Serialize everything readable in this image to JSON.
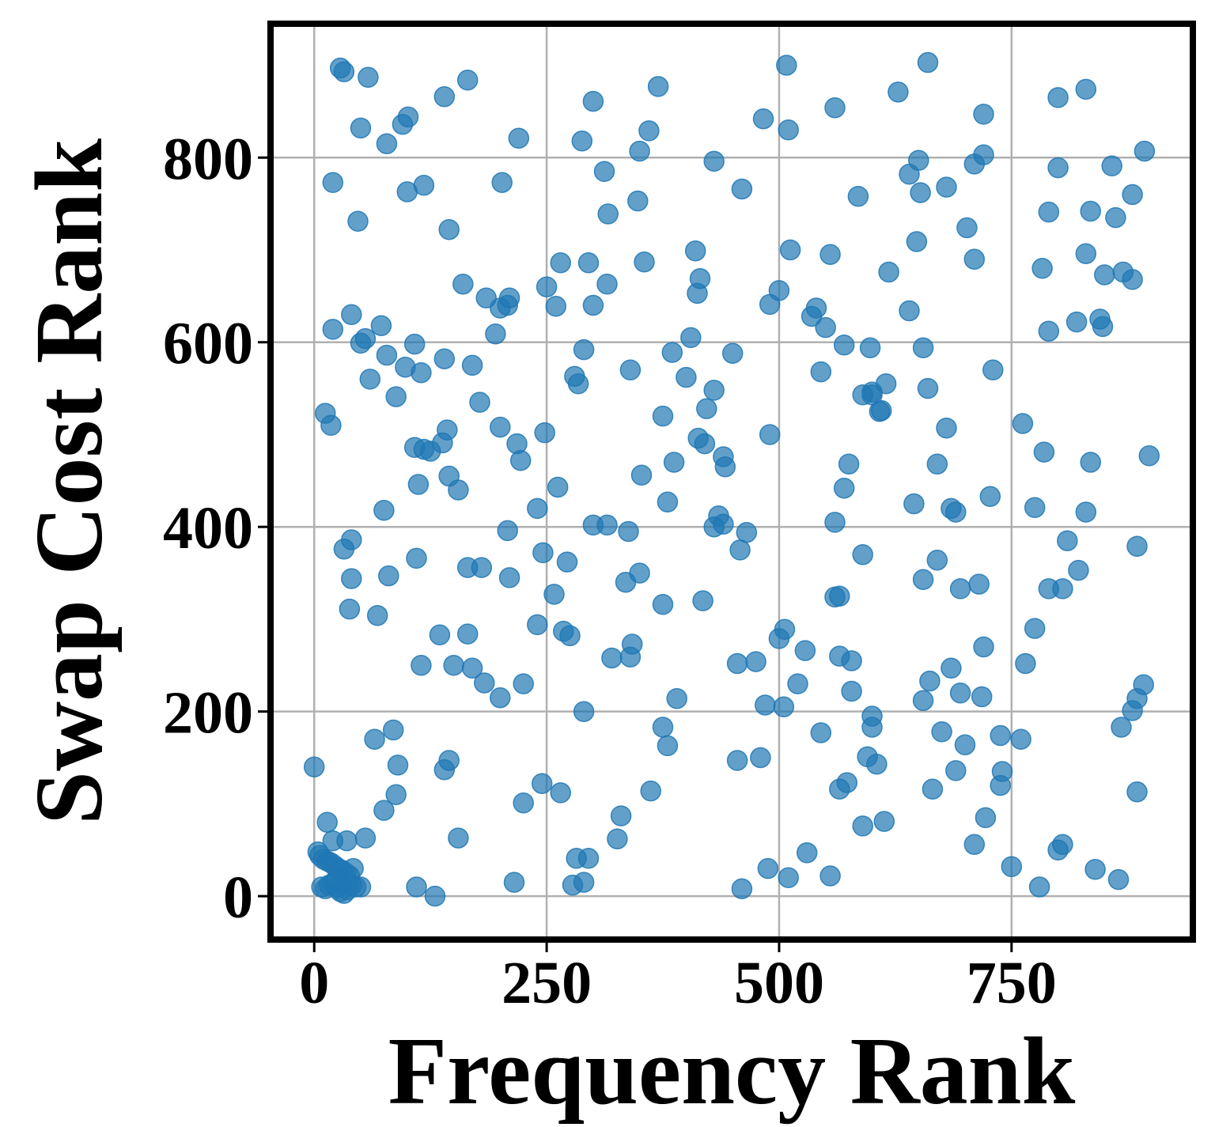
{
  "chart_data": {
    "type": "scatter",
    "xlabel": "Frequency Rank",
    "ylabel": "Swap Cost Rank",
    "xlim": [
      -47,
      945
    ],
    "ylim": [
      -47,
      945
    ],
    "xticks": [
      0,
      250,
      500,
      750
    ],
    "yticks": [
      0,
      200,
      400,
      600,
      800
    ],
    "xtick_labels": [
      "0",
      "250",
      "500",
      "750"
    ],
    "ytick_labels": [
      "0",
      "200",
      "400",
      "600",
      "800"
    ],
    "grid": true,
    "legend": "none",
    "point_color": "#1f77b4",
    "point_alpha": 0.7,
    "points": [
      [
        28,
        897
      ],
      [
        32,
        893
      ],
      [
        58,
        887
      ],
      [
        165,
        884
      ],
      [
        50,
        832
      ],
      [
        78,
        815
      ],
      [
        95,
        836
      ],
      [
        101,
        844
      ],
      [
        140,
        866
      ],
      [
        220,
        821
      ],
      [
        20,
        773
      ],
      [
        47,
        731
      ],
      [
        100,
        763
      ],
      [
        118,
        770
      ],
      [
        145,
        722
      ],
      [
        202,
        773
      ],
      [
        300,
        861
      ],
      [
        288,
        818
      ],
      [
        312,
        785
      ],
      [
        316,
        739
      ],
      [
        348,
        753
      ],
      [
        350,
        807
      ],
      [
        360,
        829
      ],
      [
        370,
        877
      ],
      [
        430,
        796
      ],
      [
        460,
        766
      ],
      [
        483,
        842
      ],
      [
        508,
        900
      ],
      [
        510,
        830
      ],
      [
        628,
        871
      ],
      [
        660,
        903
      ],
      [
        560,
        854
      ],
      [
        720,
        847
      ],
      [
        720,
        803
      ],
      [
        710,
        793
      ],
      [
        640,
        782
      ],
      [
        650,
        797
      ],
      [
        652,
        762
      ],
      [
        680,
        768
      ],
      [
        585,
        758
      ],
      [
        800,
        865
      ],
      [
        830,
        874
      ],
      [
        800,
        789
      ],
      [
        790,
        741
      ],
      [
        835,
        742
      ],
      [
        858,
        791
      ],
      [
        880,
        760
      ],
      [
        893,
        807
      ],
      [
        862,
        735
      ],
      [
        20,
        614
      ],
      [
        40,
        630
      ],
      [
        50,
        599
      ],
      [
        55,
        604
      ],
      [
        72,
        618
      ],
      [
        60,
        560
      ],
      [
        78,
        586
      ],
      [
        88,
        541
      ],
      [
        98,
        573
      ],
      [
        108,
        598
      ],
      [
        115,
        567
      ],
      [
        140,
        582
      ],
      [
        170,
        575
      ],
      [
        178,
        535
      ],
      [
        160,
        663
      ],
      [
        185,
        648
      ],
      [
        195,
        609
      ],
      [
        200,
        637
      ],
      [
        208,
        640
      ],
      [
        210,
        648
      ],
      [
        250,
        660
      ],
      [
        260,
        639
      ],
      [
        265,
        686
      ],
      [
        295,
        686
      ],
      [
        300,
        640
      ],
      [
        315,
        663
      ],
      [
        290,
        592
      ],
      [
        280,
        563
      ],
      [
        284,
        555
      ],
      [
        355,
        687
      ],
      [
        340,
        570
      ],
      [
        385,
        589
      ],
      [
        400,
        562
      ],
      [
        405,
        605
      ],
      [
        410,
        699
      ],
      [
        412,
        653
      ],
      [
        415,
        669
      ],
      [
        430,
        548
      ],
      [
        450,
        588
      ],
      [
        490,
        641
      ],
      [
        500,
        656
      ],
      [
        512,
        700
      ],
      [
        535,
        628
      ],
      [
        540,
        637
      ],
      [
        545,
        568
      ],
      [
        550,
        616
      ],
      [
        555,
        695
      ],
      [
        570,
        597
      ],
      [
        598,
        594
      ],
      [
        590,
        543
      ],
      [
        600,
        546
      ],
      [
        608,
        525
      ],
      [
        610,
        526
      ],
      [
        615,
        555
      ],
      [
        618,
        676
      ],
      [
        640,
        634
      ],
      [
        648,
        709
      ],
      [
        655,
        594
      ],
      [
        660,
        550
      ],
      [
        702,
        724
      ],
      [
        710,
        690
      ],
      [
        730,
        570
      ],
      [
        790,
        612
      ],
      [
        783,
        680
      ],
      [
        820,
        622
      ],
      [
        830,
        696
      ],
      [
        845,
        625
      ],
      [
        848,
        617
      ],
      [
        850,
        673
      ],
      [
        870,
        676
      ],
      [
        880,
        668
      ],
      [
        12,
        523
      ],
      [
        18,
        510
      ],
      [
        108,
        486
      ],
      [
        118,
        484
      ],
      [
        125,
        482
      ],
      [
        138,
        491
      ],
      [
        143,
        505
      ],
      [
        145,
        455
      ],
      [
        155,
        440
      ],
      [
        112,
        446
      ],
      [
        200,
        508
      ],
      [
        218,
        490
      ],
      [
        222,
        472
      ],
      [
        208,
        396
      ],
      [
        210,
        345
      ],
      [
        248,
        502
      ],
      [
        262,
        443
      ],
      [
        375,
        520
      ],
      [
        387,
        470
      ],
      [
        352,
        456
      ],
      [
        380,
        427
      ],
      [
        413,
        496
      ],
      [
        420,
        490
      ],
      [
        422,
        528
      ],
      [
        440,
        476
      ],
      [
        442,
        465
      ],
      [
        435,
        412
      ],
      [
        440,
        403
      ],
      [
        430,
        400
      ],
      [
        465,
        394
      ],
      [
        458,
        375
      ],
      [
        490,
        500
      ],
      [
        560,
        405
      ],
      [
        570,
        442
      ],
      [
        575,
        468
      ],
      [
        600,
        543
      ],
      [
        600,
        195
      ],
      [
        645,
        425
      ],
      [
        670,
        468
      ],
      [
        680,
        507
      ],
      [
        685,
        420
      ],
      [
        690,
        416
      ],
      [
        727,
        433
      ],
      [
        762,
        512
      ],
      [
        785,
        481
      ],
      [
        775,
        421
      ],
      [
        810,
        385
      ],
      [
        830,
        416
      ],
      [
        835,
        470
      ],
      [
        885,
        379
      ],
      [
        898,
        477
      ],
      [
        32,
        376
      ],
      [
        40,
        386
      ],
      [
        40,
        344
      ],
      [
        38,
        311
      ],
      [
        75,
        418
      ],
      [
        80,
        347
      ],
      [
        68,
        304
      ],
      [
        110,
        366
      ],
      [
        165,
        356
      ],
      [
        180,
        356
      ],
      [
        240,
        420
      ],
      [
        246,
        372
      ],
      [
        258,
        327
      ],
      [
        272,
        362
      ],
      [
        300,
        402
      ],
      [
        315,
        402
      ],
      [
        338,
        395
      ],
      [
        335,
        340
      ],
      [
        350,
        350
      ],
      [
        375,
        316
      ],
      [
        418,
        320
      ],
      [
        565,
        325
      ],
      [
        590,
        370
      ],
      [
        655,
        343
      ],
      [
        670,
        364
      ],
      [
        695,
        333
      ],
      [
        715,
        338
      ],
      [
        790,
        333
      ],
      [
        805,
        333
      ],
      [
        822,
        353
      ],
      [
        115,
        250
      ],
      [
        135,
        283
      ],
      [
        150,
        250
      ],
      [
        165,
        284
      ],
      [
        170,
        247
      ],
      [
        183,
        231
      ],
      [
        200,
        215
      ],
      [
        225,
        230
      ],
      [
        240,
        294
      ],
      [
        268,
        287
      ],
      [
        275,
        282
      ],
      [
        290,
        200
      ],
      [
        320,
        258
      ],
      [
        340,
        259
      ],
      [
        342,
        273
      ],
      [
        390,
        214
      ],
      [
        455,
        252
      ],
      [
        475,
        254
      ],
      [
        485,
        207
      ],
      [
        500,
        279
      ],
      [
        506,
        289
      ],
      [
        505,
        205
      ],
      [
        520,
        230
      ],
      [
        528,
        266
      ],
      [
        560,
        324
      ],
      [
        565,
        260
      ],
      [
        578,
        255
      ],
      [
        578,
        222
      ],
      [
        600,
        183
      ],
      [
        655,
        212
      ],
      [
        662,
        233
      ],
      [
        675,
        178
      ],
      [
        685,
        247
      ],
      [
        695,
        220
      ],
      [
        700,
        164
      ],
      [
        718,
        216
      ],
      [
        720,
        270
      ],
      [
        738,
        174
      ],
      [
        765,
        252
      ],
      [
        760,
        170
      ],
      [
        775,
        290
      ],
      [
        868,
        183
      ],
      [
        880,
        201
      ],
      [
        885,
        214
      ],
      [
        892,
        229
      ],
      [
        0,
        140
      ],
      [
        55,
        63
      ],
      [
        65,
        170
      ],
      [
        85,
        180
      ],
      [
        88,
        110
      ],
      [
        90,
        142
      ],
      [
        75,
        93
      ],
      [
        140,
        137
      ],
      [
        145,
        147
      ],
      [
        155,
        63
      ],
      [
        225,
        101
      ],
      [
        245,
        122
      ],
      [
        265,
        112
      ],
      [
        295,
        41
      ],
      [
        282,
        41
      ],
      [
        330,
        87
      ],
      [
        326,
        62
      ],
      [
        362,
        114
      ],
      [
        375,
        183
      ],
      [
        380,
        163
      ],
      [
        455,
        147
      ],
      [
        480,
        150
      ],
      [
        488,
        30
      ],
      [
        510,
        20
      ],
      [
        530,
        47
      ],
      [
        545,
        177
      ],
      [
        555,
        22
      ],
      [
        565,
        116
      ],
      [
        573,
        123
      ],
      [
        590,
        76
      ],
      [
        595,
        151
      ],
      [
        605,
        143
      ],
      [
        613,
        81
      ],
      [
        665,
        116
      ],
      [
        690,
        136
      ],
      [
        710,
        56
      ],
      [
        722,
        85
      ],
      [
        738,
        120
      ],
      [
        740,
        135
      ],
      [
        750,
        32
      ],
      [
        780,
        10
      ],
      [
        800,
        50
      ],
      [
        805,
        56
      ],
      [
        840,
        29
      ],
      [
        865,
        18
      ],
      [
        885,
        113
      ],
      [
        4,
        48
      ],
      [
        6,
        44
      ],
      [
        10,
        40
      ],
      [
        14,
        38
      ],
      [
        18,
        36
      ],
      [
        22,
        33
      ],
      [
        26,
        30
      ],
      [
        30,
        28
      ],
      [
        34,
        25
      ],
      [
        38,
        22
      ],
      [
        8,
        10
      ],
      [
        12,
        8
      ],
      [
        16,
        12
      ],
      [
        20,
        14
      ],
      [
        24,
        9
      ],
      [
        28,
        5
      ],
      [
        32,
        3
      ],
      [
        36,
        7
      ],
      [
        40,
        12
      ],
      [
        45,
        10
      ],
      [
        50,
        10
      ],
      [
        14,
        80
      ],
      [
        20,
        60
      ],
      [
        35,
        60
      ],
      [
        42,
        30
      ],
      [
        24,
        18
      ],
      [
        110,
        10
      ],
      [
        130,
        0
      ],
      [
        215,
        15
      ],
      [
        278,
        12
      ],
      [
        290,
        15
      ],
      [
        460,
        8
      ]
    ]
  }
}
